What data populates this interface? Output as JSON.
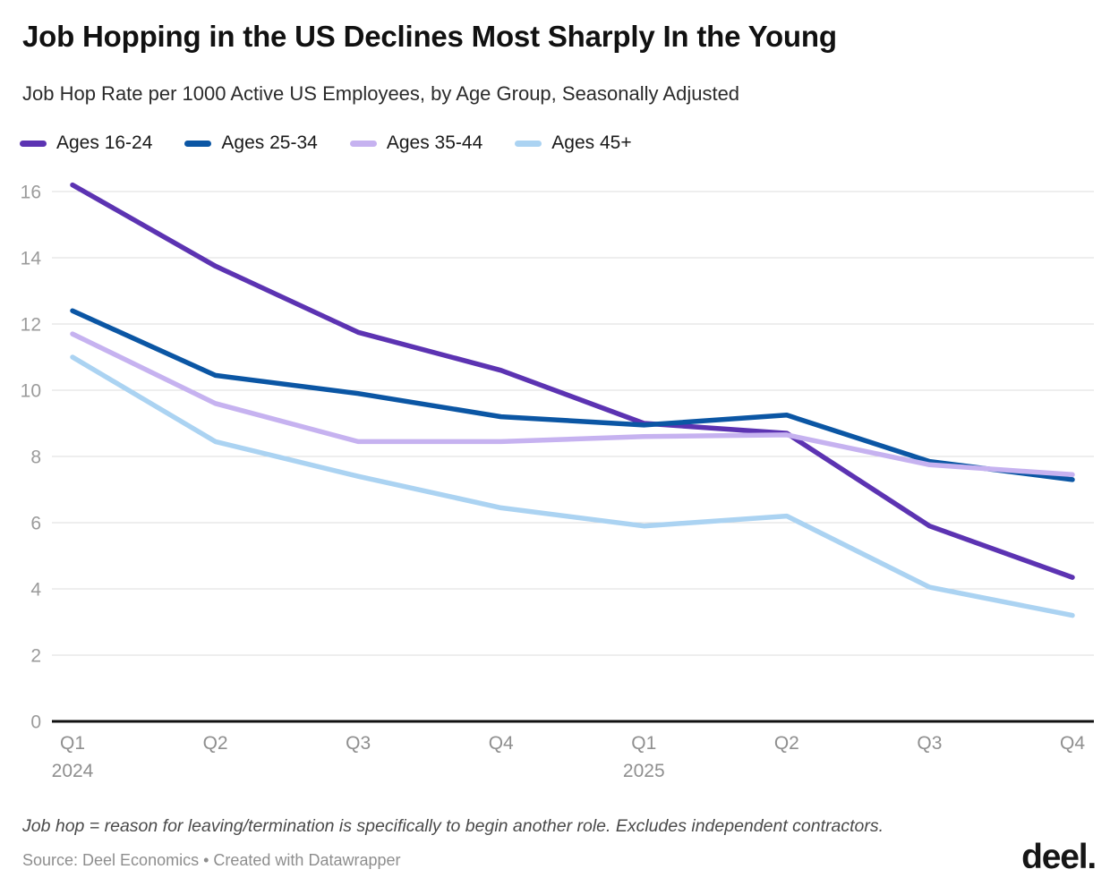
{
  "header": {
    "title": "Job Hopping in the US Declines Most Sharply In the Young",
    "subtitle": "Job Hop Rate per 1000 Active US Employees, by Age Group, Seasonally Adjusted"
  },
  "chart_data": {
    "type": "line",
    "title": "Job Hopping in the US Declines Most Sharply In the Young",
    "subtitle": "Job Hop Rate per 1000 Active US Employees, by Age Group, Seasonally Adjusted",
    "categories": [
      "Q1 2024",
      "Q2 2024",
      "Q3 2024",
      "Q4 2024",
      "Q1 2025",
      "Q2 2025",
      "Q3 2025",
      "Q4 2025"
    ],
    "x_ticks": [
      {
        "label": "Q1",
        "year": "2024"
      },
      {
        "label": "Q2"
      },
      {
        "label": "Q3"
      },
      {
        "label": "Q4"
      },
      {
        "label": "Q1",
        "year": "2025"
      },
      {
        "label": "Q2"
      },
      {
        "label": "Q3"
      },
      {
        "label": "Q4"
      }
    ],
    "series": [
      {
        "name": "Ages 16-24",
        "color": "#5C33B2",
        "values": [
          16.2,
          13.75,
          11.75,
          10.6,
          9.0,
          8.7,
          5.9,
          4.35
        ]
      },
      {
        "name": "Ages 25-34",
        "color": "#0B56A4",
        "values": [
          12.4,
          10.45,
          9.9,
          9.2,
          8.95,
          9.25,
          7.85,
          7.3
        ]
      },
      {
        "name": "Ages 35-44",
        "color": "#C6B2F0",
        "values": [
          11.7,
          9.6,
          8.45,
          8.45,
          8.6,
          8.65,
          7.75,
          7.45
        ]
      },
      {
        "name": "Ages 45+",
        "color": "#ABD3F2",
        "values": [
          11.0,
          8.45,
          7.4,
          6.45,
          5.9,
          6.2,
          4.05,
          3.2
        ]
      }
    ],
    "xlabel": "",
    "ylabel": "",
    "ylim": [
      0,
      16.6
    ],
    "y_ticks": [
      0,
      2,
      4,
      6,
      8,
      10,
      12,
      14,
      16
    ],
    "grid": "horizontal",
    "legend_position": "top"
  },
  "footer": {
    "note": "Job hop = reason for leaving/termination is specifically to begin another role. Excludes independent contractors.",
    "source": "Source: Deel Economics • Created with Datawrapper",
    "logo_text": "deel."
  },
  "colors": {
    "axis_baseline": "#111111",
    "gridline": "#dcdcdc",
    "y_tick_label": "#9b9b9b",
    "x_tick_label": "#8f8f8f",
    "title": "#111111",
    "subtitle": "#2b2b2b",
    "note": "#4a4a4a",
    "source": "#8e8e8e",
    "logo": "#161616"
  }
}
